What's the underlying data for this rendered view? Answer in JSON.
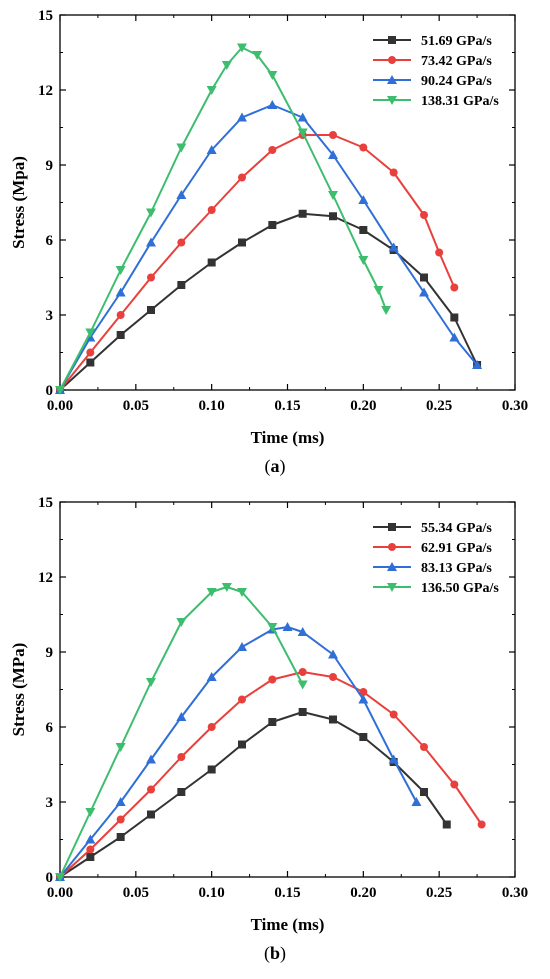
{
  "chart_data": [
    {
      "type": "line",
      "panel_label": "a",
      "xlabel": "Time (ms)",
      "ylabel": "Stress (Mpa)",
      "xlim": [
        0,
        0.3
      ],
      "ylim": [
        0,
        15
      ],
      "xticks": [
        "0.00",
        "0.05",
        "0.10",
        "0.15",
        "0.20",
        "0.25",
        "0.30"
      ],
      "yticks": [
        "0",
        "3",
        "6",
        "9",
        "12",
        "15"
      ],
      "grid": false,
      "legend_position": "top-right",
      "series": [
        {
          "name": "51.69 GPa/s",
          "color": "#333333",
          "marker": "square",
          "x": [
            0,
            0.02,
            0.04,
            0.06,
            0.08,
            0.1,
            0.12,
            0.14,
            0.16,
            0.18,
            0.2,
            0.22,
            0.24,
            0.26,
            0.275
          ],
          "y": [
            0,
            1.1,
            2.2,
            3.2,
            4.2,
            5.1,
            5.9,
            6.6,
            7.05,
            6.95,
            6.4,
            5.6,
            4.5,
            2.9,
            1.0
          ]
        },
        {
          "name": "73.42 GPa/s",
          "color": "#e8403c",
          "marker": "circle",
          "x": [
            0,
            0.02,
            0.04,
            0.06,
            0.08,
            0.1,
            0.12,
            0.14,
            0.16,
            0.18,
            0.2,
            0.22,
            0.24,
            0.25,
            0.26
          ],
          "y": [
            0,
            1.5,
            3.0,
            4.5,
            5.9,
            7.2,
            8.5,
            9.6,
            10.2,
            10.2,
            9.7,
            8.7,
            7.0,
            5.5,
            4.1
          ]
        },
        {
          "name": "90.24 GPa/s",
          "color": "#2f6fd6",
          "marker": "triangle-up",
          "x": [
            0,
            0.02,
            0.04,
            0.06,
            0.08,
            0.1,
            0.12,
            0.14,
            0.16,
            0.18,
            0.2,
            0.22,
            0.24,
            0.26,
            0.275
          ],
          "y": [
            0,
            2.1,
            3.9,
            5.9,
            7.8,
            9.6,
            10.9,
            11.4,
            10.9,
            9.4,
            7.6,
            5.7,
            3.9,
            2.1,
            1.0
          ]
        },
        {
          "name": "138.31 GPa/s",
          "color": "#3dbd6e",
          "marker": "triangle-down",
          "x": [
            0,
            0.02,
            0.04,
            0.06,
            0.08,
            0.1,
            0.11,
            0.12,
            0.13,
            0.14,
            0.16,
            0.18,
            0.2,
            0.21,
            0.215
          ],
          "y": [
            0,
            2.3,
            4.8,
            7.1,
            9.7,
            12.0,
            13.0,
            13.7,
            13.4,
            12.6,
            10.3,
            7.8,
            5.2,
            4.0,
            3.2
          ]
        }
      ]
    },
    {
      "type": "line",
      "panel_label": "b",
      "xlabel": "Time (ms)",
      "ylabel": "Stress (MPa)",
      "xlim": [
        0,
        0.3
      ],
      "ylim": [
        0,
        15
      ],
      "xticks": [
        "0.00",
        "0.05",
        "0.10",
        "0.15",
        "0.20",
        "0.25",
        "0.30"
      ],
      "yticks": [
        "0",
        "3",
        "6",
        "9",
        "12",
        "15"
      ],
      "grid": false,
      "legend_position": "top-right",
      "series": [
        {
          "name": "55.34 GPa/s",
          "color": "#333333",
          "marker": "square",
          "x": [
            0,
            0.02,
            0.04,
            0.06,
            0.08,
            0.1,
            0.12,
            0.14,
            0.16,
            0.18,
            0.2,
            0.22,
            0.24,
            0.255
          ],
          "y": [
            0,
            0.8,
            1.6,
            2.5,
            3.4,
            4.3,
            5.3,
            6.2,
            6.6,
            6.3,
            5.6,
            4.6,
            3.4,
            2.1
          ]
        },
        {
          "name": "62.91 GPa/s",
          "color": "#e8403c",
          "marker": "circle",
          "x": [
            0,
            0.02,
            0.04,
            0.06,
            0.08,
            0.1,
            0.12,
            0.14,
            0.16,
            0.18,
            0.2,
            0.22,
            0.24,
            0.26,
            0.278
          ],
          "y": [
            0,
            1.1,
            2.3,
            3.5,
            4.8,
            6.0,
            7.1,
            7.9,
            8.2,
            8.0,
            7.4,
            6.5,
            5.2,
            3.7,
            2.1
          ]
        },
        {
          "name": "83.13 GPa/s",
          "color": "#2f6fd6",
          "marker": "triangle-up",
          "x": [
            0,
            0.02,
            0.04,
            0.06,
            0.08,
            0.1,
            0.12,
            0.14,
            0.15,
            0.16,
            0.18,
            0.2,
            0.22,
            0.235
          ],
          "y": [
            0,
            1.5,
            3.0,
            4.7,
            6.4,
            8.0,
            9.2,
            9.9,
            10.0,
            9.8,
            8.9,
            7.1,
            4.7,
            3.0
          ]
        },
        {
          "name": "136.50 GPa/s",
          "color": "#3dbd6e",
          "marker": "triangle-down",
          "x": [
            0,
            0.02,
            0.04,
            0.06,
            0.08,
            0.1,
            0.11,
            0.12,
            0.14,
            0.16
          ],
          "y": [
            0,
            2.6,
            5.2,
            7.8,
            10.2,
            11.4,
            11.6,
            11.4,
            10.0,
            7.7
          ]
        }
      ]
    }
  ]
}
